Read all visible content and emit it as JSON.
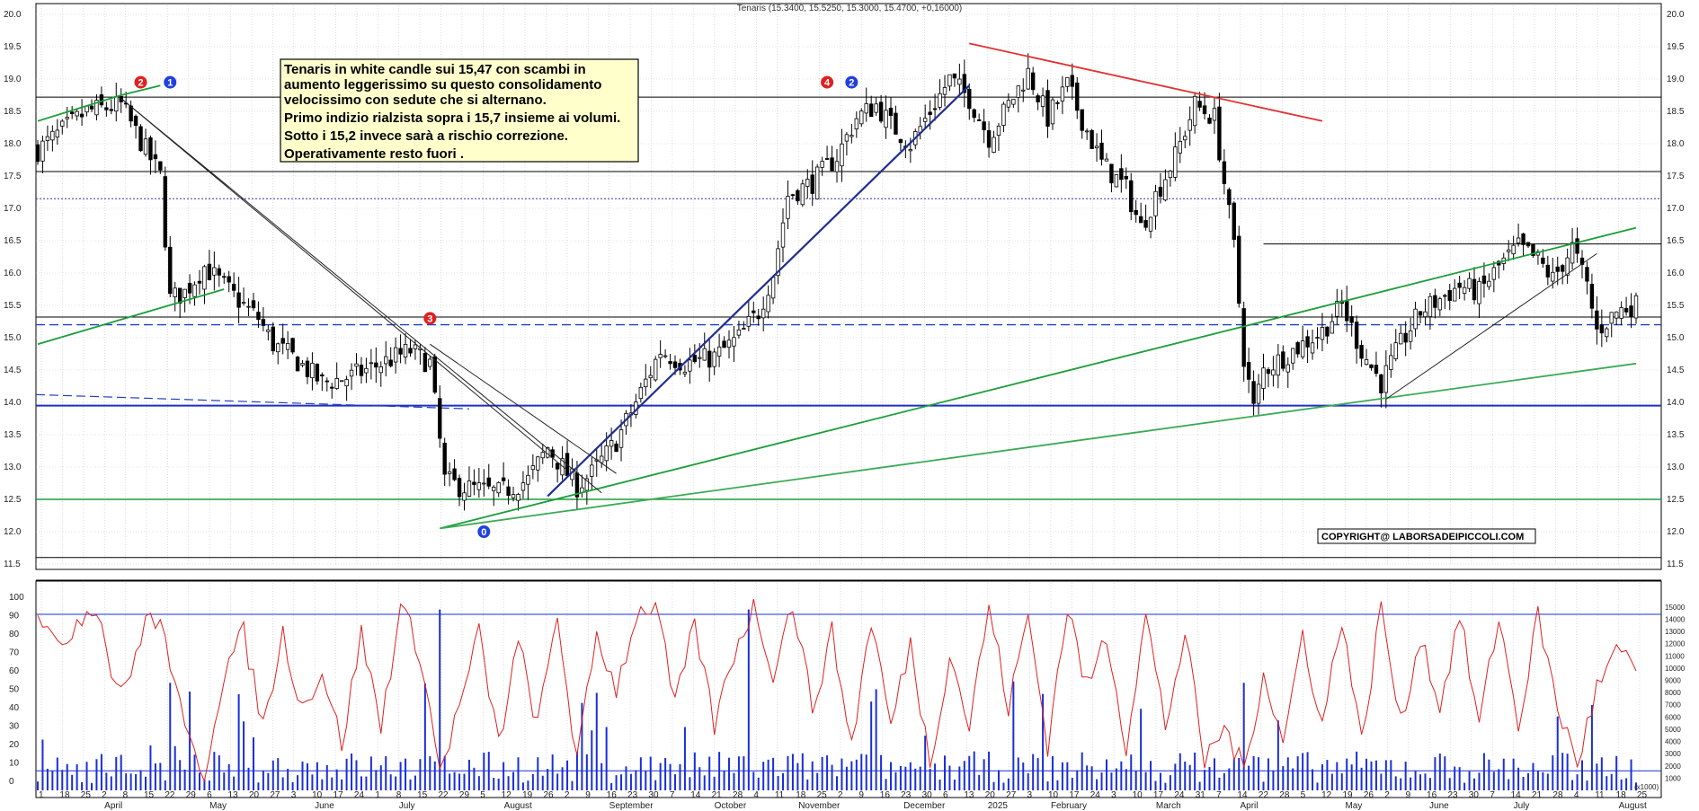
{
  "chart_data": {
    "type": "candlestick",
    "title": "Tenaris (15.3400, 15.5250, 15.3000, 15.4700, +0,16000)",
    "annotation_lines": [
      "Tenaris in white candle sui 15,47 con scambi in",
      "aumento leggerissimo su questo consolidamento",
      "velocissimo con sedute che si alternano.",
      "Primo indizio rialzista sopra i 15,7 insieme ai volumi.",
      "Sotto i 15,2 invece sarà a rischio correzione.",
      "Operativamente resto fuori ."
    ],
    "copyright": "COPYRIGHT@ LABORSADEIPICCOLI.COM",
    "price_axis": {
      "min": 11.5,
      "max": 20.0,
      "ticks": [
        "20.0",
        "19.5",
        "19.0",
        "18.5",
        "18.0",
        "17.5",
        "17.0",
        "16.5",
        "16.0",
        "15.5",
        "15.0",
        "14.5",
        "14.0",
        "13.5",
        "13.0",
        "12.5",
        "12.0",
        "11.5"
      ]
    },
    "osc_axis_left": {
      "min": -5,
      "max": 100,
      "ticks": [
        "100",
        "90",
        "80",
        "70",
        "60",
        "50",
        "40",
        "30",
        "20",
        "10",
        "0"
      ]
    },
    "volume_axis_right": {
      "ticks": [
        "15000",
        "14000",
        "13000",
        "12000",
        "11000",
        "10000",
        "9000",
        "8000",
        "7000",
        "6000",
        "5000",
        "4000",
        "3000",
        "2000",
        "1000"
      ],
      "unit_label": "(x1000)"
    },
    "x_day_ticks": [
      "1",
      "18",
      "25",
      "2",
      "8",
      "15",
      "22",
      "29",
      "6",
      "13",
      "20",
      "27",
      "3",
      "10",
      "17",
      "24",
      "1",
      "8",
      "15",
      "22",
      "29",
      "5",
      "12",
      "19",
      "26",
      "2",
      "9",
      "16",
      "23",
      "30",
      "7",
      "14",
      "21",
      "28",
      "4",
      "11",
      "18",
      "25",
      "2",
      "9",
      "16",
      "23",
      "30",
      "6",
      "13",
      "20",
      "27",
      "3",
      "10",
      "17",
      "24",
      "3",
      "10",
      "17",
      "24",
      "31",
      "7",
      "14",
      "22",
      "28",
      "5",
      "12",
      "19",
      "26",
      "2",
      "9",
      "16",
      "23",
      "30",
      "7",
      "14",
      "21",
      "28",
      "4",
      "11",
      "18",
      "25"
    ],
    "x_month_labels": [
      "April",
      "May",
      "June",
      "July",
      "August",
      "September",
      "October",
      "November",
      "December",
      "2025",
      "February",
      "March",
      "April",
      "May",
      "June",
      "July",
      "August"
    ],
    "price_anchors": [
      [
        0,
        17.9
      ],
      [
        10,
        18.5
      ],
      [
        17,
        18.6
      ],
      [
        22,
        17.9
      ],
      [
        25,
        17.5
      ],
      [
        27,
        15.6
      ],
      [
        30,
        15.7
      ],
      [
        34,
        16.1
      ],
      [
        38,
        15.8
      ],
      [
        42,
        15.5
      ],
      [
        45,
        15.3
      ],
      [
        48,
        14.9
      ],
      [
        52,
        14.7
      ],
      [
        58,
        14.3
      ],
      [
        64,
        14.4
      ],
      [
        70,
        14.6
      ],
      [
        76,
        14.8
      ],
      [
        80,
        14.6
      ],
      [
        83,
        12.8
      ],
      [
        86,
        12.7
      ],
      [
        94,
        12.6
      ],
      [
        100,
        12.8
      ],
      [
        104,
        13.3
      ],
      [
        110,
        12.7
      ],
      [
        113,
        12.9
      ],
      [
        118,
        13.4
      ],
      [
        122,
        14.0
      ],
      [
        127,
        14.8
      ],
      [
        132,
        14.6
      ],
      [
        138,
        14.7
      ],
      [
        143,
        15.0
      ],
      [
        147,
        15.4
      ],
      [
        150,
        16.0
      ],
      [
        153,
        17.2
      ],
      [
        158,
        17.4
      ],
      [
        163,
        17.8
      ],
      [
        167,
        18.4
      ],
      [
        171,
        18.6
      ],
      [
        174,
        18.3
      ],
      [
        178,
        18.0
      ],
      [
        182,
        18.5
      ],
      [
        186,
        19.0
      ],
      [
        190,
        18.7
      ],
      [
        194,
        18.1
      ],
      [
        198,
        18.6
      ],
      [
        202,
        19.1
      ],
      [
        206,
        18.4
      ],
      [
        210,
        18.9
      ],
      [
        214,
        18.2
      ],
      [
        217,
        17.7
      ],
      [
        222,
        17.3
      ],
      [
        225,
        16.7
      ],
      [
        228,
        17.2
      ],
      [
        232,
        17.8
      ],
      [
        236,
        18.6
      ],
      [
        240,
        18.4
      ],
      [
        242,
        17.4
      ],
      [
        244,
        16.4
      ],
      [
        246,
        14.7
      ],
      [
        248,
        13.9
      ],
      [
        250,
        14.5
      ],
      [
        256,
        14.8
      ],
      [
        262,
        15.1
      ],
      [
        266,
        15.5
      ],
      [
        270,
        14.8
      ],
      [
        274,
        14.3
      ],
      [
        278,
        14.9
      ],
      [
        282,
        15.4
      ],
      [
        286,
        15.6
      ],
      [
        290,
        15.8
      ],
      [
        294,
        15.7
      ],
      [
        298,
        16.1
      ],
      [
        302,
        16.4
      ],
      [
        306,
        16.2
      ],
      [
        309,
        15.9
      ],
      [
        313,
        16.4
      ],
      [
        316,
        15.8
      ],
      [
        318,
        15.1
      ],
      [
        322,
        15.4
      ],
      [
        325,
        15.5
      ]
    ],
    "levels": [
      18.72,
      17.57,
      17.15,
      16.45,
      15.32,
      15.2,
      13.95,
      12.5,
      11.6
    ],
    "trendlines": [
      {
        "from": [
          0,
          18.35
        ],
        "to": [
          17,
          18.75
        ],
        "color": "#1a9e3a"
      },
      {
        "from": [
          17,
          18.75
        ],
        "to": [
          25,
          18.9
        ],
        "color": "#1a9e3a"
      },
      {
        "from": [
          0,
          14.9
        ],
        "to": [
          38,
          15.75
        ],
        "color": "#1a9e3a"
      },
      {
        "from": [
          82,
          12.05
        ],
        "to": [
          326,
          16.7
        ],
        "color": "#1a9e3a"
      },
      {
        "from": [
          82,
          12.05
        ],
        "to": [
          326,
          14.6
        ],
        "color": "#3aaa55"
      },
      {
        "from": [
          104,
          12.55
        ],
        "to": [
          190,
          18.9
        ],
        "color": "#1f2e8f"
      },
      {
        "from": [
          17,
          18.7
        ],
        "to": [
          108,
          12.95
        ],
        "color": "#222222"
      },
      {
        "from": [
          17,
          18.7
        ],
        "to": [
          115,
          12.6
        ],
        "color": "#222222"
      },
      {
        "from": [
          80,
          14.9
        ],
        "to": [
          118,
          12.9
        ],
        "color": "#222222"
      },
      {
        "from": [
          190,
          19.55
        ],
        "to": [
          262,
          18.35
        ],
        "color": "#e03030"
      },
      {
        "from": [
          275,
          14.05
        ],
        "to": [
          318,
          16.3
        ],
        "color": "#222222"
      }
    ],
    "markers": [
      {
        "label": "2",
        "color": "#e02020",
        "x": 21,
        "y": 18.95
      },
      {
        "label": "1",
        "color": "#2040e0",
        "x": 27,
        "y": 18.95
      },
      {
        "label": "3",
        "color": "#e02020",
        "x": 80,
        "y": 15.3
      },
      {
        "label": "0",
        "color": "#2040e0",
        "x": 91,
        "y": 12.0
      },
      {
        "label": "4",
        "color": "#e02020",
        "x": 161,
        "y": 18.95
      },
      {
        "label": "2",
        "color": "#2040e0",
        "x": 166,
        "y": 18.95
      }
    ],
    "oscillator_anchors": [
      [
        0,
        95
      ],
      [
        4,
        70
      ],
      [
        8,
        88
      ],
      [
        12,
        97
      ],
      [
        15,
        60
      ],
      [
        18,
        48
      ],
      [
        22,
        90
      ],
      [
        26,
        80
      ],
      [
        30,
        25
      ],
      [
        34,
        5
      ],
      [
        38,
        60
      ],
      [
        42,
        80
      ],
      [
        46,
        30
      ],
      [
        50,
        80
      ],
      [
        54,
        40
      ],
      [
        58,
        60
      ],
      [
        62,
        20
      ],
      [
        66,
        80
      ],
      [
        70,
        30
      ],
      [
        74,
        95
      ],
      [
        78,
        70
      ],
      [
        82,
        5
      ],
      [
        86,
        40
      ],
      [
        90,
        80
      ],
      [
        94,
        20
      ],
      [
        98,
        75
      ],
      [
        102,
        30
      ],
      [
        106,
        90
      ],
      [
        110,
        10
      ],
      [
        114,
        80
      ],
      [
        118,
        50
      ],
      [
        122,
        90
      ],
      [
        126,
        97
      ],
      [
        130,
        40
      ],
      [
        134,
        85
      ],
      [
        138,
        30
      ],
      [
        142,
        70
      ],
      [
        146,
        95
      ],
      [
        150,
        60
      ],
      [
        154,
        97
      ],
      [
        158,
        40
      ],
      [
        162,
        80
      ],
      [
        166,
        20
      ],
      [
        170,
        88
      ],
      [
        174,
        30
      ],
      [
        178,
        75
      ],
      [
        182,
        10
      ],
      [
        186,
        70
      ],
      [
        190,
        30
      ],
      [
        194,
        95
      ],
      [
        198,
        40
      ],
      [
        202,
        90
      ],
      [
        206,
        20
      ],
      [
        210,
        95
      ],
      [
        214,
        50
      ],
      [
        218,
        80
      ],
      [
        222,
        20
      ],
      [
        226,
        90
      ],
      [
        230,
        30
      ],
      [
        234,
        80
      ],
      [
        238,
        10
      ],
      [
        242,
        30
      ],
      [
        246,
        5
      ],
      [
        250,
        60
      ],
      [
        254,
        20
      ],
      [
        258,
        80
      ],
      [
        262,
        30
      ],
      [
        266,
        90
      ],
      [
        270,
        20
      ],
      [
        274,
        95
      ],
      [
        278,
        30
      ],
      [
        282,
        80
      ],
      [
        286,
        40
      ],
      [
        290,
        90
      ],
      [
        294,
        30
      ],
      [
        298,
        90
      ],
      [
        302,
        30
      ],
      [
        306,
        90
      ],
      [
        310,
        40
      ],
      [
        314,
        10
      ],
      [
        318,
        50
      ],
      [
        322,
        70
      ],
      [
        326,
        60
      ]
    ],
    "volume_line": 1600,
    "volume_ceiling": 14400
  }
}
